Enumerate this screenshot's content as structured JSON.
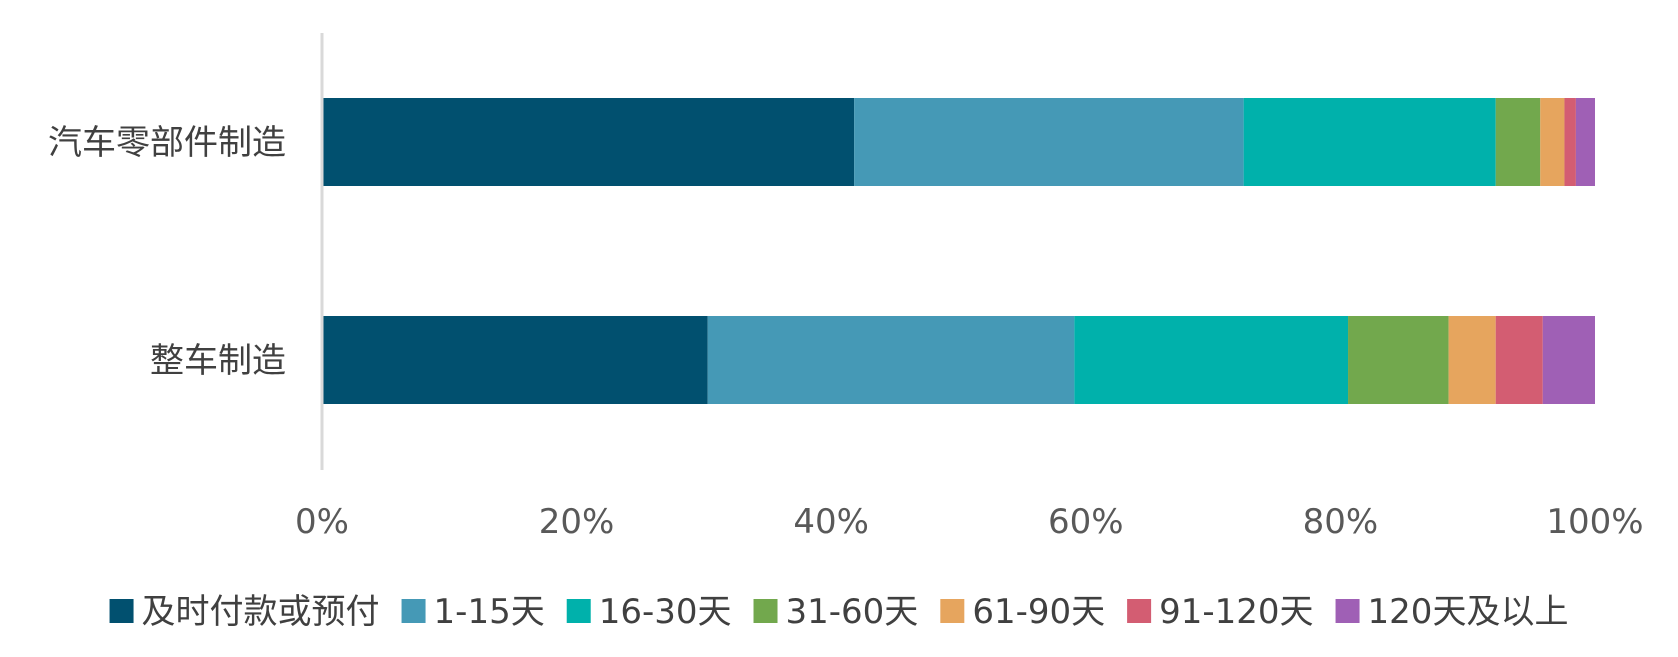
{
  "chart_data": {
    "type": "bar",
    "orientation": "horizontal",
    "stacked": "percent",
    "categories": [
      "汽车零部件制造",
      "整车制造"
    ],
    "series": [
      {
        "name": "及时付款或预付",
        "color": "#01506F",
        "values": [
          41.8,
          30.3
        ]
      },
      {
        "name": "1-15天",
        "color": "#4599B6",
        "values": [
          30.6,
          28.8
        ]
      },
      {
        "name": "16-30天",
        "color": "#00B1AB",
        "values": [
          19.8,
          21.5
        ]
      },
      {
        "name": "31-60天",
        "color": "#72A84D",
        "values": [
          3.5,
          7.9
        ]
      },
      {
        "name": "61-90天",
        "color": "#E6A55E",
        "values": [
          1.9,
          3.7
        ]
      },
      {
        "name": "91-120天",
        "color": "#D35D72",
        "values": [
          0.9,
          3.7
        ]
      },
      {
        "name": "120天及以上",
        "color": "#9F60B5",
        "values": [
          1.5,
          4.1
        ]
      }
    ],
    "xlim": [
      0,
      100
    ],
    "xticks": [
      "0%",
      "20%",
      "40%",
      "60%",
      "80%",
      "100%"
    ],
    "grid": false,
    "legend_position": "bottom"
  }
}
